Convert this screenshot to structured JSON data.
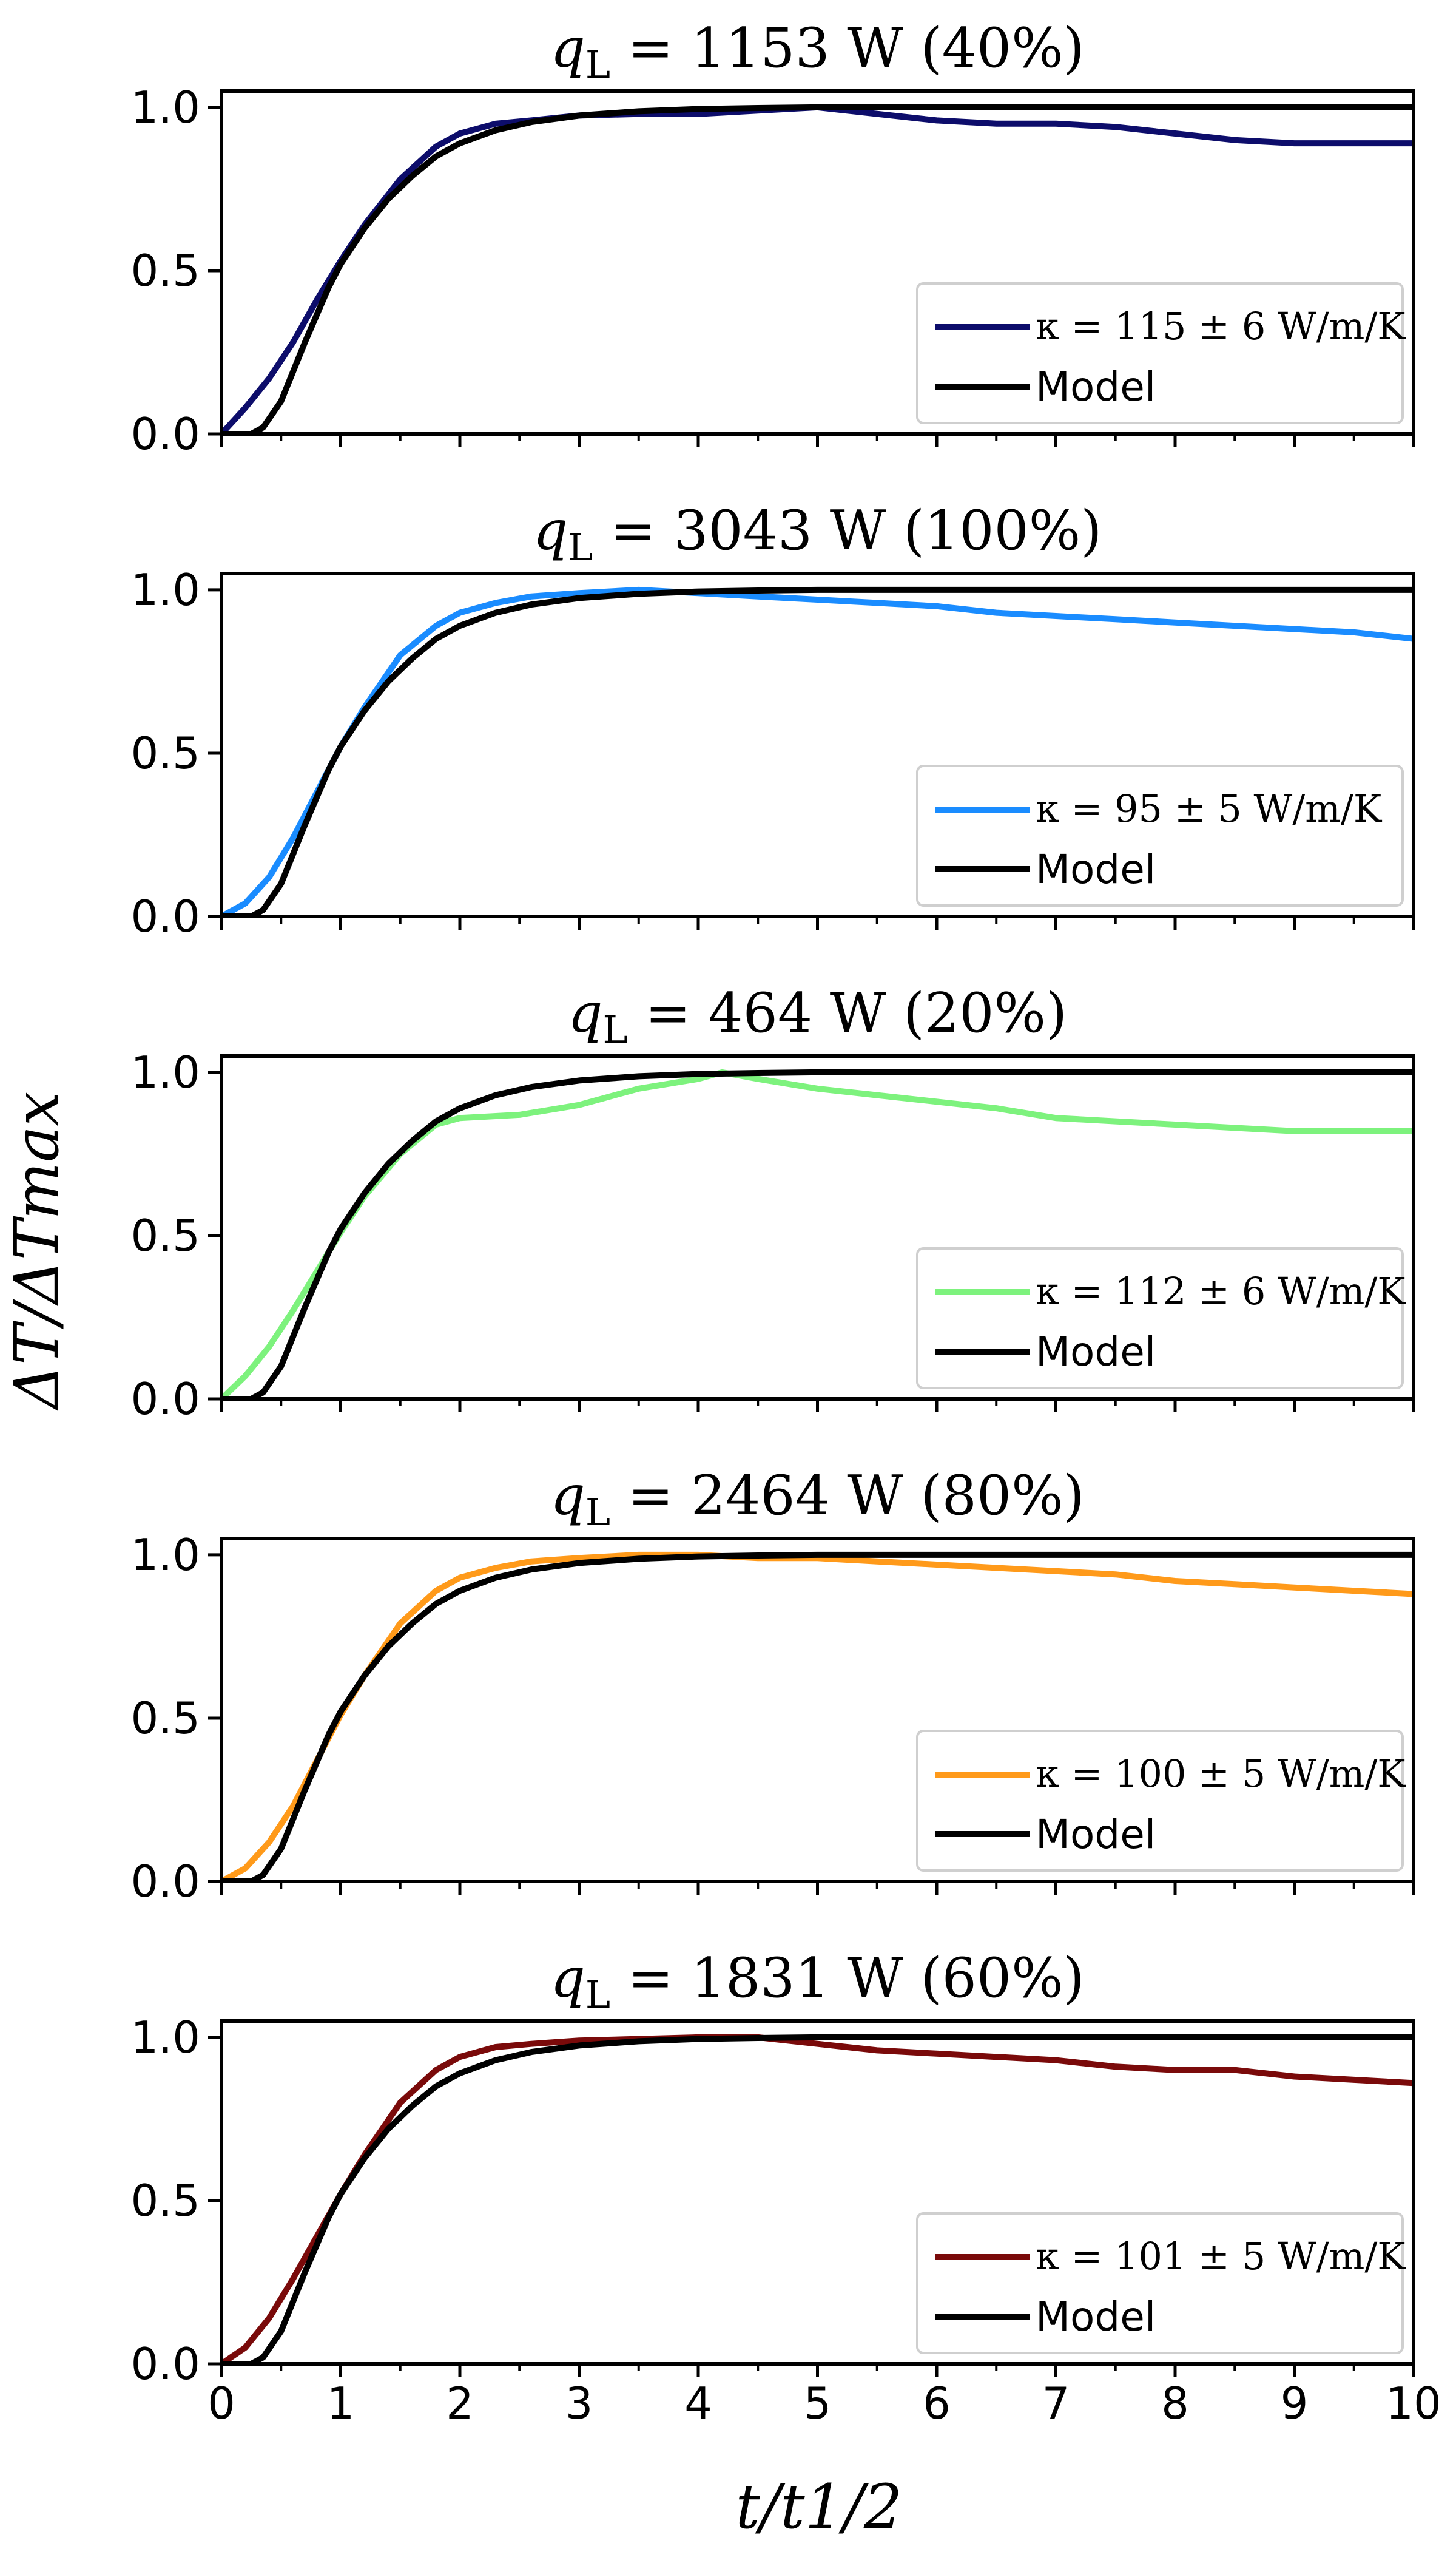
{
  "chart_data": {
    "type": "line",
    "xlabel": "t/t1/2",
    "ylabel": "ΔT/ΔTmax",
    "xlim": [
      0,
      10
    ],
    "ylim": [
      0,
      1.05
    ],
    "x_ticks": [
      "0",
      "1",
      "2",
      "3",
      "4",
      "5",
      "6",
      "7",
      "8",
      "9",
      "10"
    ],
    "y_ticks": [
      "0.0",
      "0.5",
      "1.0"
    ],
    "legend_position": "lower-right",
    "grid": false,
    "model_label": "Model",
    "model_color": "#000000",
    "model_curve": {
      "x": [
        0,
        0.25,
        0.35,
        0.5,
        0.7,
        0.9,
        1.0,
        1.2,
        1.4,
        1.6,
        1.8,
        2.0,
        2.3,
        2.6,
        3.0,
        3.5,
        4.0,
        4.5,
        5,
        6,
        7,
        8,
        9,
        10
      ],
      "y": [
        0,
        0.0,
        0.02,
        0.1,
        0.28,
        0.45,
        0.52,
        0.63,
        0.72,
        0.79,
        0.85,
        0.89,
        0.93,
        0.955,
        0.975,
        0.988,
        0.995,
        0.998,
        1.0,
        1.0,
        1.0,
        1.0,
        1.0,
        1.0
      ]
    },
    "panels": [
      {
        "title": {
          "prefix": "q",
          "subscript": "L",
          "rest": " = 1153 W (40%)"
        },
        "series": {
          "name": "κ = 115 ± 6 W/m/K",
          "color": "#0d0d6b",
          "x": [
            0,
            0.2,
            0.4,
            0.6,
            0.8,
            1.0,
            1.2,
            1.5,
            1.8,
            2.0,
            2.3,
            2.6,
            3.0,
            3.5,
            4.0,
            4.5,
            5.0,
            5.5,
            6.0,
            6.5,
            7.0,
            7.5,
            8.0,
            8.5,
            9.0,
            9.5,
            10.0
          ],
          "y": [
            0.0,
            0.08,
            0.17,
            0.28,
            0.41,
            0.53,
            0.64,
            0.78,
            0.88,
            0.92,
            0.95,
            0.96,
            0.975,
            0.98,
            0.98,
            0.99,
            1.0,
            0.98,
            0.96,
            0.95,
            0.95,
            0.94,
            0.92,
            0.9,
            0.89,
            0.89,
            0.89
          ]
        }
      },
      {
        "title": {
          "prefix": "q",
          "subscript": "L",
          "rest": " = 3043 W (100%)"
        },
        "series": {
          "name": "κ = 95 ± 5 W/m/K",
          "color": "#1a8cff",
          "x": [
            0,
            0.2,
            0.4,
            0.6,
            0.8,
            1.0,
            1.2,
            1.5,
            1.8,
            2.0,
            2.3,
            2.6,
            3.0,
            3.5,
            4.0,
            4.5,
            5.0,
            5.5,
            6.0,
            6.5,
            7.0,
            7.5,
            8.0,
            8.5,
            9.0,
            9.5,
            10.0
          ],
          "y": [
            0.0,
            0.04,
            0.12,
            0.24,
            0.38,
            0.52,
            0.64,
            0.8,
            0.89,
            0.93,
            0.96,
            0.98,
            0.99,
            1.0,
            0.99,
            0.98,
            0.97,
            0.96,
            0.95,
            0.93,
            0.92,
            0.91,
            0.9,
            0.89,
            0.88,
            0.87,
            0.85
          ]
        }
      },
      {
        "title": {
          "prefix": "q",
          "subscript": "L",
          "rest": " = 464 W (20%)"
        },
        "series": {
          "name": "κ = 112 ± 6 W/m/K",
          "color": "#7df27d",
          "x": [
            0,
            0.2,
            0.4,
            0.6,
            0.8,
            1.0,
            1.2,
            1.5,
            1.8,
            2.0,
            2.5,
            3.0,
            3.5,
            4.0,
            4.2,
            4.5,
            5.0,
            5.5,
            6.0,
            6.5,
            7.0,
            7.5,
            8.0,
            8.5,
            9.0,
            9.5,
            10.0
          ],
          "y": [
            0.0,
            0.07,
            0.16,
            0.27,
            0.39,
            0.51,
            0.62,
            0.75,
            0.84,
            0.86,
            0.87,
            0.9,
            0.95,
            0.98,
            1.0,
            0.98,
            0.95,
            0.93,
            0.91,
            0.89,
            0.86,
            0.85,
            0.84,
            0.83,
            0.82,
            0.82,
            0.82
          ]
        }
      },
      {
        "title": {
          "prefix": "q",
          "subscript": "L",
          "rest": " = 2464 W (80%)"
        },
        "series": {
          "name": "κ = 100 ± 5 W/m/K",
          "color": "#ff9a1a",
          "x": [
            0,
            0.2,
            0.4,
            0.6,
            0.8,
            1.0,
            1.2,
            1.5,
            1.8,
            2.0,
            2.3,
            2.6,
            3.0,
            3.5,
            4.0,
            4.5,
            5.0,
            5.5,
            6.0,
            6.5,
            7.0,
            7.5,
            8.0,
            8.5,
            9.0,
            9.5,
            10.0
          ],
          "y": [
            0.0,
            0.04,
            0.12,
            0.23,
            0.37,
            0.51,
            0.63,
            0.79,
            0.89,
            0.93,
            0.96,
            0.98,
            0.99,
            1.0,
            1.0,
            0.99,
            0.99,
            0.98,
            0.97,
            0.96,
            0.95,
            0.94,
            0.92,
            0.91,
            0.9,
            0.89,
            0.88
          ]
        }
      },
      {
        "title": {
          "prefix": "q",
          "subscript": "L",
          "rest": " = 1831 W (60%)"
        },
        "series": {
          "name": "κ = 101 ± 5 W/m/K",
          "color": "#7a0a0a",
          "x": [
            0,
            0.2,
            0.4,
            0.6,
            0.8,
            1.0,
            1.2,
            1.5,
            1.8,
            2.0,
            2.3,
            2.6,
            3.0,
            3.5,
            4.0,
            4.5,
            5.0,
            5.5,
            6.0,
            6.5,
            7.0,
            7.5,
            8.0,
            8.5,
            9.0,
            9.5,
            10.0
          ],
          "y": [
            0.0,
            0.05,
            0.14,
            0.26,
            0.39,
            0.52,
            0.64,
            0.8,
            0.9,
            0.94,
            0.97,
            0.98,
            0.99,
            0.995,
            1.0,
            1.0,
            0.98,
            0.96,
            0.95,
            0.94,
            0.93,
            0.91,
            0.9,
            0.9,
            0.88,
            0.87,
            0.86
          ]
        }
      }
    ]
  }
}
